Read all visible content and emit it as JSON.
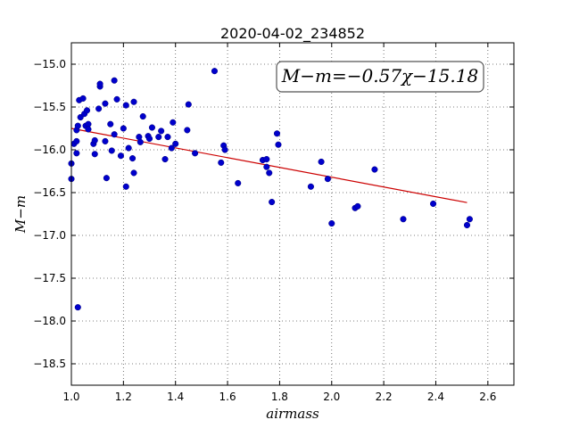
{
  "chart_data": {
    "type": "scatter",
    "title": "2020-04-02_234852",
    "xlabel": "airmass",
    "ylabel": "M−m",
    "xlim": [
      1.0,
      2.7
    ],
    "ylim": [
      -18.75,
      -14.75
    ],
    "y_inverted": true,
    "grid": true,
    "xticks": [
      "1.0",
      "1.2",
      "1.4",
      "1.6",
      "1.8",
      "2.0",
      "2.2",
      "2.4",
      "2.6"
    ],
    "yticks": [
      "−15.0",
      "−15.5",
      "−16.0",
      "−16.5",
      "−17.0",
      "−17.5",
      "−18.0",
      "−18.5"
    ],
    "annotation": "M−m=−0.57χ−15.18",
    "fit": {
      "slope": -0.57,
      "intercept": -15.18,
      "x_range": [
        1.0,
        2.52
      ],
      "color": "#cc0000"
    },
    "marker_color": "#0000cc",
    "points": [
      [
        1.0,
        -16.16
      ],
      [
        1.0,
        -16.34
      ],
      [
        1.01,
        -15.93
      ],
      [
        1.02,
        -15.77
      ],
      [
        1.02,
        -15.9
      ],
      [
        1.02,
        -16.04
      ],
      [
        1.025,
        -15.72
      ],
      [
        1.025,
        -17.84
      ],
      [
        1.03,
        -15.42
      ],
      [
        1.035,
        -15.62
      ],
      [
        1.045,
        -15.4
      ],
      [
        1.05,
        -15.58
      ],
      [
        1.055,
        -15.72
      ],
      [
        1.06,
        -15.54
      ],
      [
        1.065,
        -15.7
      ],
      [
        1.065,
        -15.76
      ],
      [
        1.085,
        -15.93
      ],
      [
        1.09,
        -15.89
      ],
      [
        1.09,
        -16.05
      ],
      [
        1.105,
        -15.52
      ],
      [
        1.11,
        -15.26
      ],
      [
        1.11,
        -15.23
      ],
      [
        1.13,
        -15.46
      ],
      [
        1.13,
        -15.9
      ],
      [
        1.135,
        -16.33
      ],
      [
        1.15,
        -15.7
      ],
      [
        1.155,
        -16.01
      ],
      [
        1.165,
        -15.19
      ],
      [
        1.165,
        -15.82
      ],
      [
        1.175,
        -15.41
      ],
      [
        1.19,
        -16.07
      ],
      [
        1.2,
        -15.75
      ],
      [
        1.21,
        -15.48
      ],
      [
        1.21,
        -16.43
      ],
      [
        1.22,
        -15.98
      ],
      [
        1.235,
        -16.1
      ],
      [
        1.24,
        -15.44
      ],
      [
        1.24,
        -16.27
      ],
      [
        1.26,
        -15.85
      ],
      [
        1.265,
        -15.91
      ],
      [
        1.275,
        -15.61
      ],
      [
        1.295,
        -15.84
      ],
      [
        1.3,
        -15.87
      ],
      [
        1.31,
        -15.74
      ],
      [
        1.335,
        -15.85
      ],
      [
        1.345,
        -15.78
      ],
      [
        1.36,
        -16.11
      ],
      [
        1.37,
        -15.85
      ],
      [
        1.385,
        -15.98
      ],
      [
        1.39,
        -15.68
      ],
      [
        1.4,
        -15.93
      ],
      [
        1.445,
        -15.77
      ],
      [
        1.45,
        -15.47
      ],
      [
        1.475,
        -16.04
      ],
      [
        1.55,
        -15.08
      ],
      [
        1.575,
        -16.15
      ],
      [
        1.585,
        -15.95
      ],
      [
        1.59,
        -16.0
      ],
      [
        1.64,
        -16.39
      ],
      [
        1.735,
        -16.12
      ],
      [
        1.75,
        -16.11
      ],
      [
        1.75,
        -16.2
      ],
      [
        1.76,
        -16.27
      ],
      [
        1.77,
        -16.61
      ],
      [
        1.79,
        -15.81
      ],
      [
        1.795,
        -15.94
      ],
      [
        1.92,
        -16.43
      ],
      [
        1.96,
        -16.14
      ],
      [
        1.985,
        -16.34
      ],
      [
        2.0,
        -16.86
      ],
      [
        2.09,
        -16.68
      ],
      [
        2.1,
        -16.66
      ],
      [
        2.165,
        -16.23
      ],
      [
        2.275,
        -16.81
      ],
      [
        2.39,
        -16.63
      ],
      [
        2.52,
        -16.88
      ],
      [
        2.53,
        -16.81
      ]
    ]
  }
}
